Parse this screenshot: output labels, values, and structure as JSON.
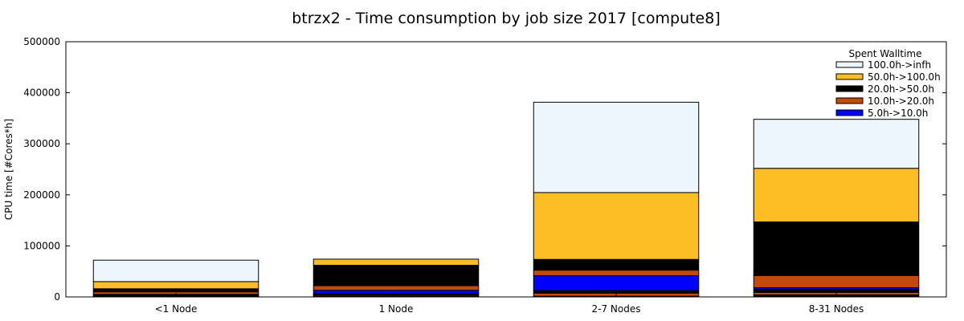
{
  "chart_data": {
    "type": "bar",
    "stacked": true,
    "title": "btrzx2 - Time consumption by job size 2017 [compute8]",
    "xlabel": "",
    "ylabel": "CPU time [#Cores*h]",
    "ylim": [
      0,
      500000
    ],
    "yticks": [
      "0",
      "100000",
      "200000",
      "300000",
      "400000",
      "500000"
    ],
    "grid": false,
    "legend_title": "Spent Walltime",
    "legend_position": "top-right",
    "categories": [
      "<1 Node",
      "1 Node",
      "2-7 Nodes",
      "8-31 Nodes"
    ],
    "series": [
      {
        "name": "",
        "color": "#000000",
        "values": [
          1500,
          2000,
          1500,
          4000
        ]
      },
      {
        "name": "",
        "color": "#c24a0c",
        "values": [
          1500,
          2000,
          6000,
          5000
        ]
      },
      {
        "name": "",
        "color": "#000000",
        "values": [
          2000,
          2000,
          5000,
          6000
        ]
      },
      {
        "name": "5.0h->10.0h",
        "color": "#0000ff",
        "values": [
          0,
          7000,
          29000,
          3000
        ]
      },
      {
        "name": "10.0h->20.0h",
        "color": "#c24a0c",
        "values": [
          5000,
          9000,
          11000,
          24000
        ]
      },
      {
        "name": "20.0h->50.0h",
        "color": "#000000",
        "values": [
          6000,
          40000,
          21000,
          105000
        ]
      },
      {
        "name": "50.0h->100.0h",
        "color": "#fdbd25",
        "values": [
          14000,
          12000,
          131000,
          105000
        ]
      },
      {
        "name": "100.0h->infh",
        "color": "#eef6fd",
        "values": [
          42000,
          0,
          177000,
          96000
        ]
      }
    ]
  }
}
